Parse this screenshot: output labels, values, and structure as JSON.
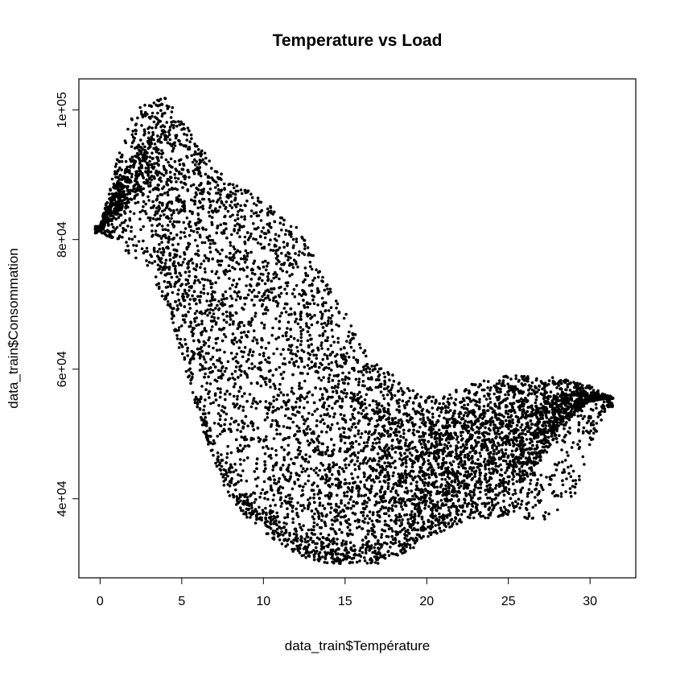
{
  "chart_data": {
    "type": "scatter",
    "title": "Temperature vs Load",
    "xlabel": "data_train$Température",
    "ylabel": "data_train$Consommation",
    "xlim": [
      -1.3,
      32.8
    ],
    "ylim": [
      27800,
      104800
    ],
    "x_ticks": [
      0,
      5,
      10,
      15,
      20,
      25,
      30
    ],
    "x_tick_labels": [
      "0",
      "5",
      "10",
      "15",
      "20",
      "25",
      "30"
    ],
    "y_ticks": [
      40000,
      60000,
      80000,
      100000
    ],
    "y_tick_labels": [
      "4e+04",
      "6e+04",
      "8e+04",
      "1e+05"
    ],
    "grid": false,
    "marker_color": "#000000",
    "density_envelope": {
      "description": "approximate min/max load per temperature bin (dense cloud of points)",
      "temperature": [
        0,
        1,
        2,
        3,
        4,
        5,
        6,
        7,
        8,
        9,
        10,
        11,
        12,
        13,
        14,
        15,
        16,
        17,
        18,
        19,
        20,
        21,
        22,
        23,
        24,
        25,
        26,
        27,
        28,
        29,
        30,
        31
      ],
      "load_min": [
        81000,
        80000,
        77000,
        75000,
        70000,
        62000,
        53000,
        45000,
        40000,
        37000,
        35000,
        33000,
        31500,
        30500,
        30000,
        30000,
        30000,
        30000,
        31000,
        32000,
        34000,
        35000,
        36000,
        37000,
        37000,
        37500,
        37000,
        36500,
        38000,
        40000,
        48000,
        54000
      ],
      "load_max": [
        82000,
        92000,
        100000,
        101000,
        102000,
        99000,
        95000,
        91000,
        89000,
        88000,
        86000,
        84000,
        82000,
        78000,
        73000,
        69000,
        64000,
        61000,
        59000,
        57000,
        56000,
        56000,
        57000,
        58000,
        58500,
        59000,
        59000,
        58500,
        59000,
        58000,
        57500,
        56000
      ],
      "load_core_min": [
        81500,
        84000,
        86000,
        88000,
        74000,
        66000,
        56000,
        48000,
        43000,
        40000,
        38000,
        36000,
        34500,
        33500,
        33000,
        32500,
        32500,
        33000,
        34000,
        35500,
        37000,
        38500,
        39500,
        40500,
        41000,
        41500,
        43000,
        46000,
        50000,
        53000,
        55000,
        55500
      ],
      "load_core_max": [
        82000,
        88000,
        93000,
        96000,
        96000,
        94000,
        90000,
        87000,
        85000,
        83000,
        81000,
        78000,
        75000,
        71000,
        66000,
        62000,
        58000,
        55000,
        53000,
        52000,
        51500,
        52000,
        53000,
        54000,
        55000,
        55500,
        55500,
        54000,
        56000,
        56500,
        56000,
        55500
      ]
    }
  }
}
